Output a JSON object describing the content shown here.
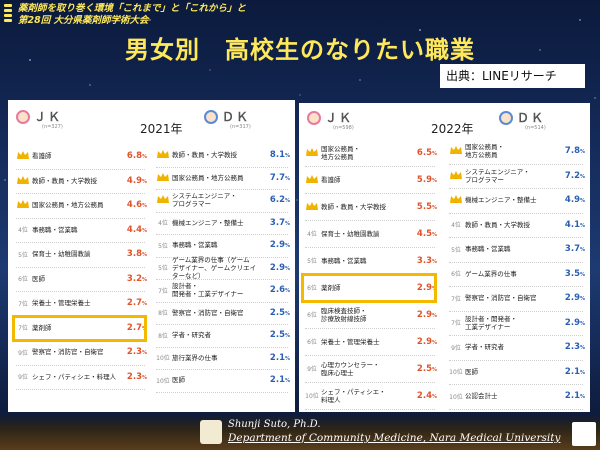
{
  "header": {
    "line1": "薬剤師を取り巻く環境「これまで」と「これから」と",
    "line2": "第28回 大分県薬剤師学術大会"
  },
  "title": "男女別　高校生のなりたい職業",
  "source": "出典：LINEリサーチ",
  "colors": {
    "accent": "#ffe85a",
    "female": "#e0542c",
    "male": "#2a5fb4",
    "highlight": "#f5b800"
  },
  "panel2021": {
    "year": "2021年",
    "jk": {
      "label": "ＪＫ",
      "n": "(n=327)",
      "rows": [
        {
          "rank": "1位",
          "job": "看護師",
          "pct": "6.8",
          "unit": "%"
        },
        {
          "rank": "2位",
          "job": "教師・教員・大学教授",
          "pct": "4.9",
          "unit": "%"
        },
        {
          "rank": "3位",
          "job": "国家公務員・地方公務員",
          "pct": "4.6",
          "unit": "%"
        },
        {
          "rank": "4位",
          "job": "事務職・営業職",
          "pct": "4.4",
          "unit": "%"
        },
        {
          "rank": "5位",
          "job": "保育士・幼稚園教諭",
          "pct": "3.8",
          "unit": "%"
        },
        {
          "rank": "6位",
          "job": "医師",
          "pct": "3.2",
          "unit": "%"
        },
        {
          "rank": "7位",
          "job": "栄養士・管理栄養士",
          "pct": "2.7",
          "unit": "%"
        },
        {
          "rank": "7位",
          "job": "薬剤師",
          "pct": "2.7",
          "unit": "%"
        },
        {
          "rank": "9位",
          "job": "警察官・消防官・自衛官",
          "pct": "2.3",
          "unit": "%"
        },
        {
          "rank": "9位",
          "job": "シェフ・パティシエ・料理人",
          "pct": "2.3",
          "unit": "%"
        }
      ]
    },
    "dk": {
      "label": "ＤＫ",
      "n": "(n=317)",
      "rows": [
        {
          "rank": "1位",
          "job": "教師・教員・大学教授",
          "pct": "8.1",
          "unit": "%"
        },
        {
          "rank": "2位",
          "job": "国家公務員・地方公務員",
          "pct": "7.7",
          "unit": "%"
        },
        {
          "rank": "3位",
          "job": "システムエンジニア・\nプログラマー",
          "pct": "6.2",
          "unit": "%"
        },
        {
          "rank": "4位",
          "job": "機械エンジニア・整備士",
          "pct": "3.7",
          "unit": "%"
        },
        {
          "rank": "5位",
          "job": "事務職・営業職",
          "pct": "2.9",
          "unit": "%"
        },
        {
          "rank": "5位",
          "job": "ゲーム業界の仕事（ゲーム\nデザイナー、ゲームクリエイターなど）",
          "pct": "2.9",
          "unit": "%"
        },
        {
          "rank": "7位",
          "job": "設計者・\n開発者・工業デザイナー",
          "pct": "2.6",
          "unit": "%"
        },
        {
          "rank": "8位",
          "job": "警察官・消防官・自衛官",
          "pct": "2.5",
          "unit": "%"
        },
        {
          "rank": "8位",
          "job": "学者・研究者",
          "pct": "2.5",
          "unit": "%"
        },
        {
          "rank": "10位",
          "job": "旅行業界の仕事",
          "pct": "2.1",
          "unit": "%"
        },
        {
          "rank": "10位",
          "job": "医師",
          "pct": "2.1",
          "unit": "%"
        }
      ]
    }
  },
  "panel2022": {
    "year": "2022年",
    "jk": {
      "label": "ＪＫ",
      "n": "(n=598)",
      "rows": [
        {
          "rank": "1位",
          "job": "国家公務員・\n地方公務員",
          "pct": "6.5",
          "unit": "%"
        },
        {
          "rank": "2位",
          "job": "看護師",
          "pct": "5.9",
          "unit": "%"
        },
        {
          "rank": "3位",
          "job": "教師・教員・大学教授",
          "pct": "5.5",
          "unit": "%"
        },
        {
          "rank": "4位",
          "job": "保育士・幼稚園教諭",
          "pct": "4.5",
          "unit": "%"
        },
        {
          "rank": "5位",
          "job": "事務職・営業職",
          "pct": "3.3",
          "unit": "%"
        },
        {
          "rank": "6位",
          "job": "薬剤師",
          "pct": "2.9",
          "unit": "%"
        },
        {
          "rank": "6位",
          "job": "臨床検査技師・\n診療放射線技師",
          "pct": "2.9",
          "unit": "%"
        },
        {
          "rank": "6位",
          "job": "栄養士・管理栄養士",
          "pct": "2.9",
          "unit": "%"
        },
        {
          "rank": "9位",
          "job": "心理カウンセラー・\n臨床心理士",
          "pct": "2.5",
          "unit": "%"
        },
        {
          "rank": "10位",
          "job": "シェフ・パティシエ・\n料理人",
          "pct": "2.4",
          "unit": "%"
        }
      ]
    },
    "dk": {
      "label": "ＤＫ",
      "n": "(n=514)",
      "rows": [
        {
          "rank": "1位",
          "job": "国家公務員・\n地方公務員",
          "pct": "7.8",
          "unit": "%"
        },
        {
          "rank": "2位",
          "job": "システムエンジニア・\nプログラマー",
          "pct": "7.2",
          "unit": "%"
        },
        {
          "rank": "3位",
          "job": "機械エンジニア・整備士",
          "pct": "4.9",
          "unit": "%"
        },
        {
          "rank": "4位",
          "job": "教師・教員・大学教授",
          "pct": "4.1",
          "unit": "%"
        },
        {
          "rank": "5位",
          "job": "事務職・営業職",
          "pct": "3.7",
          "unit": "%"
        },
        {
          "rank": "6位",
          "job": "ゲーム業界の仕事",
          "pct": "3.5",
          "unit": "%"
        },
        {
          "rank": "7位",
          "job": "警察官・消防官・自衛官",
          "pct": "2.9",
          "unit": "%"
        },
        {
          "rank": "7位",
          "job": "設計者・開発者・\n工業デザイナー",
          "pct": "2.9",
          "unit": "%"
        },
        {
          "rank": "9位",
          "job": "学者・研究者",
          "pct": "2.3",
          "unit": "%"
        },
        {
          "rank": "10位",
          "job": "医師",
          "pct": "2.1",
          "unit": "%"
        },
        {
          "rank": "10位",
          "job": "公認会計士",
          "pct": "2.1",
          "unit": "%"
        }
      ]
    }
  },
  "footer": {
    "author": "Shunji Suto, Ph.D.",
    "dept": "Department of Community Medicine, Nara Medical University"
  }
}
